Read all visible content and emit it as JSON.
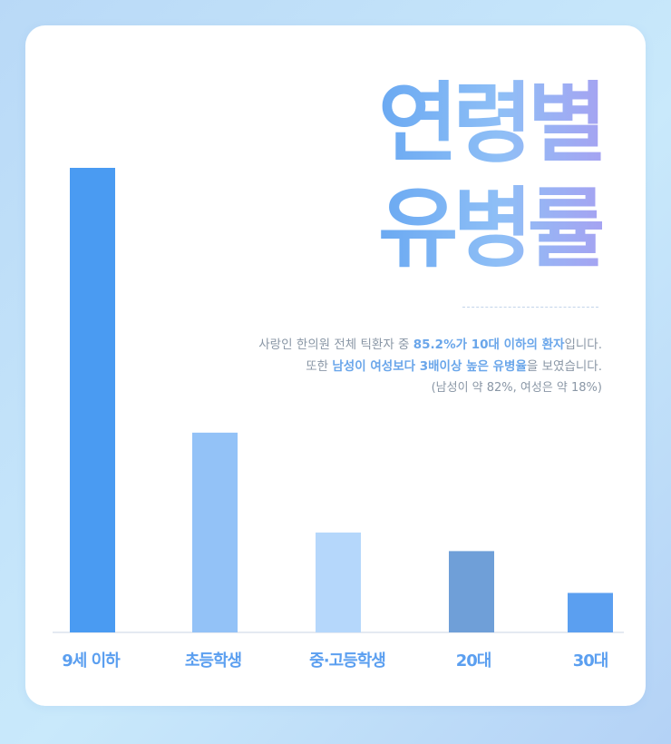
{
  "title": {
    "line1": "연령별",
    "line2": "유병률"
  },
  "description": {
    "line1": [
      {
        "text": "사랑인 한의원 전체 틱환자 중 ",
        "bold": false
      },
      {
        "text": "85.2%가 10대 이하의 환자",
        "bold": true
      },
      {
        "text": "입니다.",
        "bold": false
      }
    ],
    "line2": [
      {
        "text": "또한 ",
        "bold": false
      },
      {
        "text": "남성이 여성보다 3배이상 높은 유병율",
        "bold": true
      },
      {
        "text": "을 보였습니다.",
        "bold": false
      }
    ],
    "line3": "(남성이 약 82%, 여성은 약 18%)"
  },
  "colors": {
    "accent": "#5b9ff0",
    "bars": [
      "#4a9bf2",
      "#93c2f7",
      "#b5d7fb",
      "#6f9fd8",
      "#5b9ff0"
    ]
  },
  "chart_data": {
    "type": "bar",
    "categories": [
      "9세 이하",
      "초등학생",
      "중·고등학생",
      "20대",
      "30대"
    ],
    "values": [
      100,
      43,
      21.5,
      17.5,
      8.5
    ],
    "title": "연령별 유병률",
    "xlabel": "",
    "ylabel": "",
    "ylim": [
      0,
      100
    ],
    "grid": false,
    "legend": "none"
  }
}
